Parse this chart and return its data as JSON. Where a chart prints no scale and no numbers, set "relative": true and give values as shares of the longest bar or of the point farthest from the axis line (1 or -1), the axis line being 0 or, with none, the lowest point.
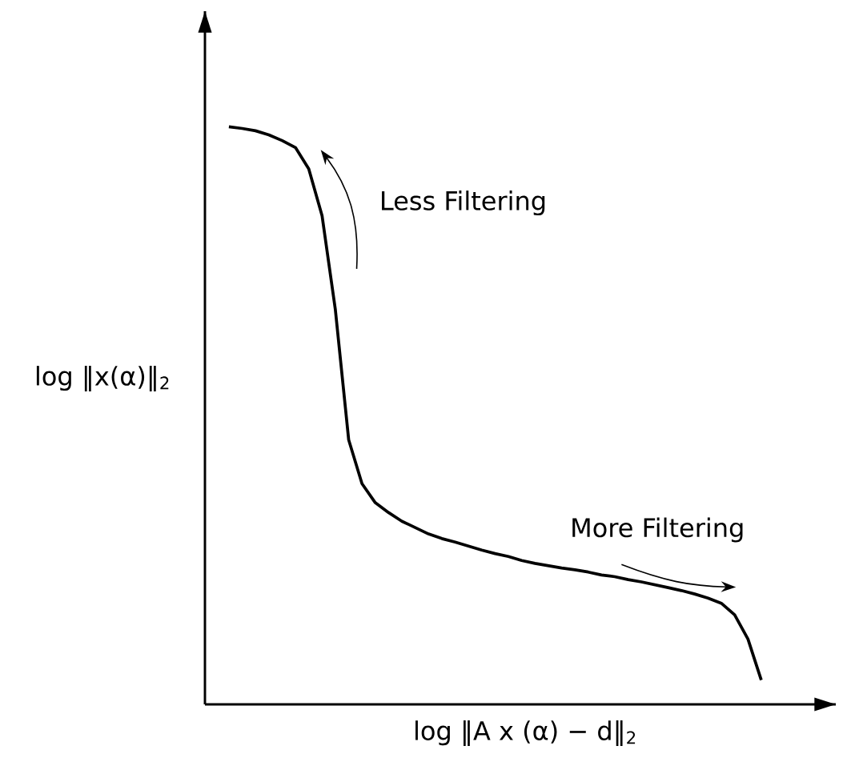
{
  "chart_data": {
    "type": "line",
    "relative": true,
    "xlabel": "log ‖A x (α) − d‖$_{2}$",
    "ylabel": "log ‖x(α)‖$_{2}$",
    "annotations": [
      "Less Filtering",
      "More Filtering"
    ],
    "categories": [
      null,
      null,
      null,
      null,
      null,
      null,
      null,
      null,
      null,
      null,
      null,
      null,
      null,
      null,
      null,
      null,
      null,
      null,
      null,
      null,
      null,
      null,
      null,
      null,
      null,
      null,
      null,
      null,
      null,
      null,
      null,
      null,
      null,
      null,
      null,
      null,
      null,
      null,
      null,
      null,
      null
    ],
    "series": [
      {
        "color": "#000000",
        "line_style": "solid",
        "values": [
          1.0,
          0.997,
          0.993,
          0.986,
          0.976,
          0.964,
          0.927,
          0.846,
          0.683,
          0.458,
          0.382,
          0.349,
          0.332,
          0.317,
          0.306,
          0.295,
          0.287,
          0.281,
          0.274,
          0.267,
          0.261,
          0.256,
          0.249,
          0.244,
          0.24,
          0.236,
          0.233,
          0.229,
          0.224,
          0.221,
          0.216,
          0.212,
          0.207,
          0.202,
          0.197,
          0.191,
          0.184,
          0.175,
          0.155,
          0.113,
          0.042
        ]
      }
    ]
  }
}
